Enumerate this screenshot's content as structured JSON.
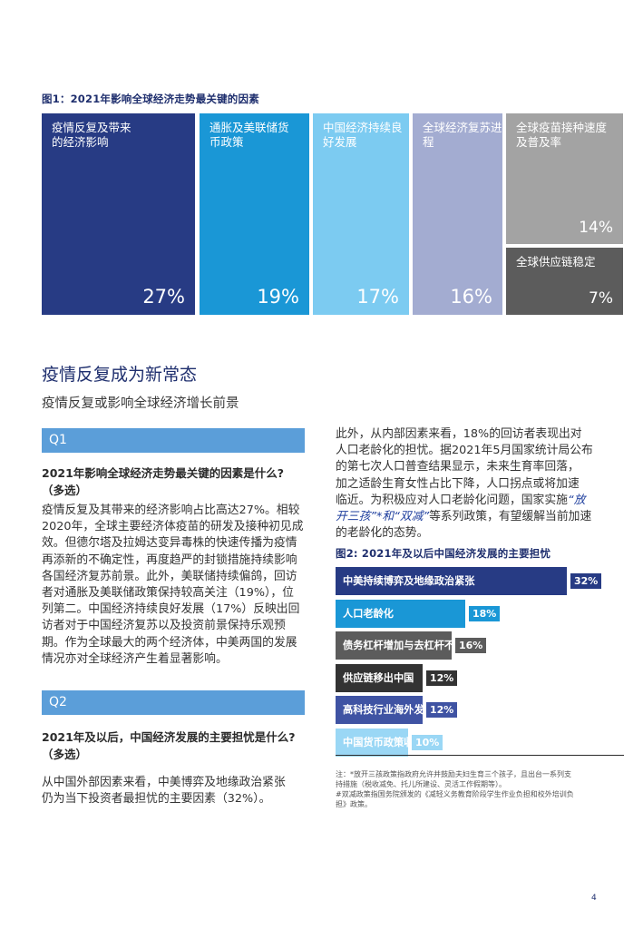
{
  "fig1": {
    "title": "图1：2021年影响全球经济走势最关键的因素",
    "tiles": [
      {
        "label": "疫情反复及带来的经济影响",
        "value": "27%",
        "color": "#273b84"
      },
      {
        "label": "通胀及美联储货币政策",
        "value": "19%",
        "color": "#1a97d6"
      },
      {
        "label": "中国经济持续良好发展",
        "value": "17%",
        "color": "#7ccbf1"
      },
      {
        "label": "全球经济复苏进程",
        "value": "16%",
        "color": "#a3acd1"
      },
      {
        "label": "全球疫苗接种速度及普及率",
        "value": "14%",
        "color": "#a3a3a3"
      },
      {
        "label": "全球供应链稳定",
        "value": "7%",
        "color": "#5c5c5c"
      }
    ]
  },
  "section": {
    "title": "疫情反复成为新常态",
    "subtitle": "疫情反复或影响全球经济增长前景"
  },
  "q1": {
    "tag": "Q1",
    "question_line1": "2021年影响全球经济走势最关键的因素是什么?",
    "question_line2": "（多选）",
    "body_lines": [
      "疫情反复及其带来的经济影响占比高达27%。相较",
      "2020年，全球主要经济体疫苗的研发及接种初见成",
      "效。但德尔塔及拉姆达变异毒株的快速传播为疫情",
      "再添新的不确定性，再度趋严的封锁措施持续影响",
      "各国经济复苏前景。此外，美联储持续偏鸽，回访",
      "者对通胀及美联储政策保持较高关注（19%），位",
      "列第二。中国经济持续良好发展（17%）反映出回",
      "访者对于中国经济复苏以及投资前景保持乐观预",
      "期。作为全球最大的两个经济体，中美两国的发展",
      "情况亦对全球经济产生着显著影响。"
    ]
  },
  "q2": {
    "tag": "Q2",
    "question_line1": "2021年及以后，中国经济发展的主要担忧是什么?",
    "question_line2": "（多选）",
    "body_lines": [
      "从中国外部因素来看，中美博弈及地缘政治紧张",
      "仍为当下投资者最担忧的主要因素（32%）。"
    ]
  },
  "right_col": {
    "lines": [
      "此外，从内部因素来看，18%的回访者表现出对",
      "人口老龄化的担忧。据2021年5月国家统计局公布",
      "的第七次人口普查结果显示，未来生育率回落，",
      "加之适龄生育女性占比下降，人口拐点或将加速",
      "临近。为积极应对人口老龄化问题，国家实施"
    ],
    "hl_open": "“放",
    "line6_hl": "开三孩”*和“双减”",
    "line6_rest": "等系列政策，有望缓解当前加速",
    "line7": "的老龄化的态势。"
  },
  "fig2": {
    "title": "图2:  2021年及以后中国经济发展的主要担忧",
    "bars": [
      {
        "label": "中美持续博弈及地缘政治紧张",
        "value": "32%",
        "value_num": 32,
        "color": "#273b84"
      },
      {
        "label": "人口老龄化",
        "value": "18%",
        "value_num": 18,
        "color": "#1a97d6"
      },
      {
        "label": "债务杠杆增加与去杠杆不力",
        "value": "16%",
        "value_num": 16,
        "color": "#5c5c5c"
      },
      {
        "label": "供应链移出中国",
        "value": "12%",
        "value_num": 12,
        "color": "#333333"
      },
      {
        "label": "高科技行业海外发展壁垒",
        "value": "12%",
        "value_num": 12,
        "color": "#3f53a3"
      },
      {
        "label": "中国货币政策收紧",
        "value": "10%",
        "value_num": 10,
        "color": "#9ad7f5"
      }
    ],
    "notes": [
      "注：*放开三孩政策指政府允许并鼓励夫妇生育三个孩子，且出台一系列支",
      "持措施（税收减免、托儿所建设、灵活工作假期等）。",
      "#双减政策指国务院颁发的《减轻义务教育阶段学生作业负担和校外培训负",
      "担》政策。"
    ]
  },
  "page_number": "4"
}
